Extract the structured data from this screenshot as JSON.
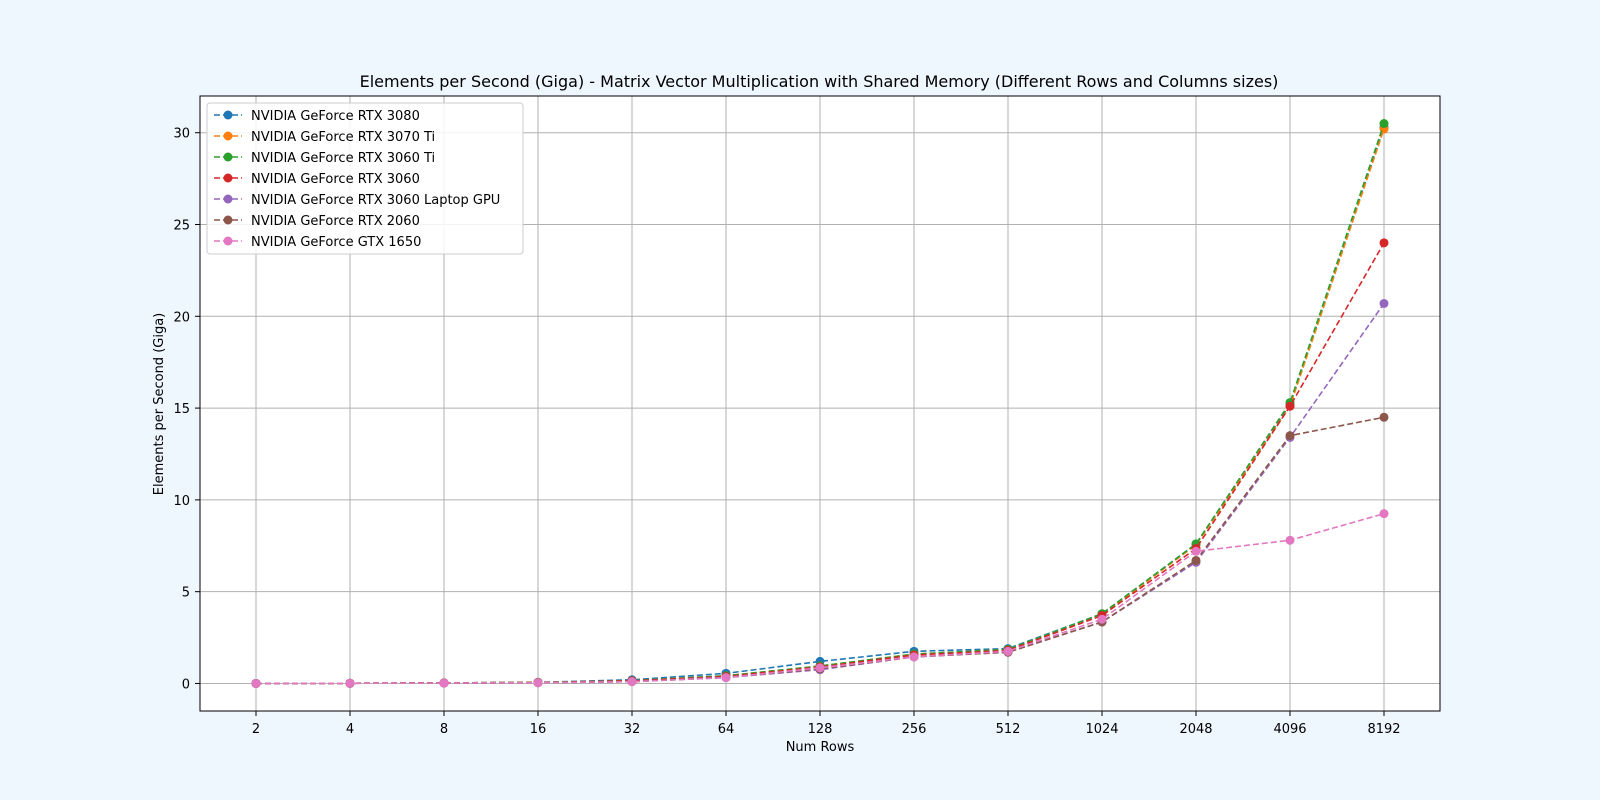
{
  "chart_data": {
    "type": "line",
    "title": "Elements per Second (Giga) - Matrix Vector Multiplication with Shared Memory (Different Rows and Columns sizes)",
    "xlabel": "Num Rows",
    "ylabel": "Elements per Second (Giga)",
    "categories": [
      "2",
      "4",
      "8",
      "16",
      "32",
      "64",
      "128",
      "256",
      "512",
      "1024",
      "2048",
      "4096",
      "8192"
    ],
    "ylim": [
      -1.5,
      32
    ],
    "yticks": [
      0,
      5,
      10,
      15,
      20,
      25,
      30
    ],
    "grid": true,
    "legend_position": "top-left",
    "line_style": "dashed",
    "marker": "circle",
    "series": [
      {
        "name": "NVIDIA GeForce RTX 3080",
        "color": "#1f77b4",
        "values": [
          0.0,
          0.01,
          0.03,
          0.06,
          0.2,
          0.55,
          1.2,
          1.75,
          1.9,
          3.8,
          7.6,
          15.2,
          30.3
        ]
      },
      {
        "name": "NVIDIA GeForce RTX 3070 Ti",
        "color": "#ff7f0e",
        "values": [
          0.0,
          0.01,
          0.03,
          0.06,
          0.15,
          0.42,
          0.95,
          1.6,
          1.85,
          3.75,
          7.55,
          15.1,
          30.2
        ]
      },
      {
        "name": "NVIDIA GeForce RTX 3060 Ti",
        "color": "#2ca02c",
        "values": [
          0.0,
          0.01,
          0.03,
          0.06,
          0.15,
          0.42,
          0.95,
          1.6,
          1.85,
          3.8,
          7.6,
          15.3,
          30.5
        ]
      },
      {
        "name": "NVIDIA GeForce RTX 3060",
        "color": "#d62728",
        "values": [
          0.0,
          0.01,
          0.03,
          0.05,
          0.14,
          0.38,
          0.9,
          1.55,
          1.8,
          3.7,
          7.35,
          15.1,
          24.0
        ]
      },
      {
        "name": "NVIDIA GeForce RTX 3060 Laptop GPU",
        "color": "#9467bd",
        "values": [
          0.0,
          0.01,
          0.02,
          0.04,
          0.1,
          0.32,
          0.75,
          1.45,
          1.7,
          3.35,
          6.6,
          13.4,
          20.7
        ]
      },
      {
        "name": "NVIDIA GeForce RTX 2060",
        "color": "#8c564b",
        "values": [
          0.0,
          0.01,
          0.02,
          0.04,
          0.1,
          0.33,
          0.8,
          1.45,
          1.7,
          3.35,
          6.7,
          13.5,
          14.5
        ]
      },
      {
        "name": "NVIDIA GeForce GTX 1650",
        "color": "#e377c2",
        "values": [
          0.0,
          0.01,
          0.02,
          0.04,
          0.1,
          0.32,
          0.85,
          1.45,
          1.75,
          3.5,
          7.2,
          7.8,
          9.25
        ]
      }
    ]
  }
}
